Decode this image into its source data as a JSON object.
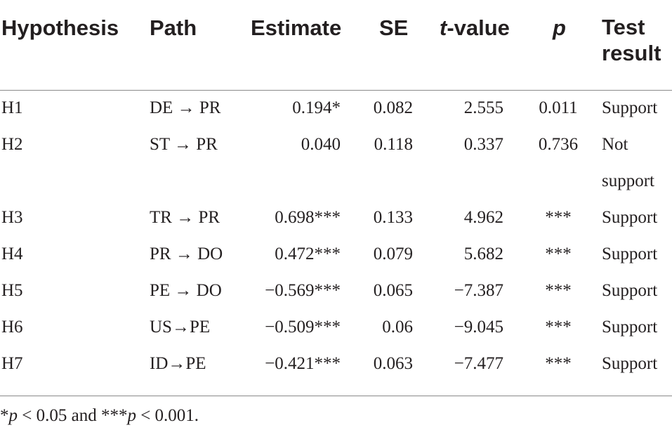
{
  "table": {
    "headers": {
      "hypothesis": "Hypothesis",
      "path": "Path",
      "estimate": "Estimate",
      "se": "SE",
      "t_value_italic": "t",
      "t_value_rest": "-value",
      "p": "p",
      "test_result": "Test result"
    },
    "rows": [
      {
        "hypothesis": "H1",
        "path": "DE → PR",
        "estimate": "0.194*",
        "se": "0.082",
        "t_value": "2.555",
        "p": "0.011",
        "result": "Support"
      },
      {
        "hypothesis": "H2",
        "path": "ST → PR",
        "estimate": "0.040",
        "se": "0.118",
        "t_value": "0.337",
        "p": "0.736",
        "result": "Not support"
      },
      {
        "hypothesis": "H3",
        "path": "TR → PR",
        "estimate": "0.698***",
        "se": "0.133",
        "t_value": "4.962",
        "p": "***",
        "result": "Support"
      },
      {
        "hypothesis": "H4",
        "path": "PR → DO",
        "estimate": "0.472***",
        "se": "0.079",
        "t_value": "5.682",
        "p": "***",
        "result": "Support"
      },
      {
        "hypothesis": "H5",
        "path": "PE → DO",
        "estimate": "−0.569***",
        "se": "0.065",
        "t_value": "−7.387",
        "p": "***",
        "result": "Support"
      },
      {
        "hypothesis": "H6",
        "path": "US→PE",
        "estimate": "−0.509***",
        "se": "0.06",
        "t_value": "−9.045",
        "p": "***",
        "result": "Support"
      },
      {
        "hypothesis": "H7",
        "path": "ID→PE",
        "estimate": "−0.421***",
        "se": "0.063",
        "t_value": "−7.477",
        "p": "***",
        "result": "Support"
      }
    ],
    "footnote": {
      "part1": "*",
      "p1": "p",
      "part2": " < 0.05 and ***",
      "p2": "p",
      "part3": " < 0.001."
    }
  }
}
